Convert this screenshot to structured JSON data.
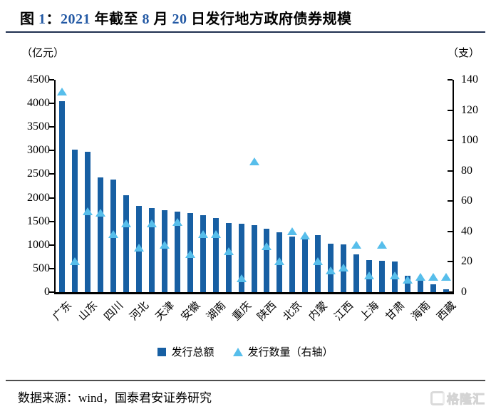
{
  "title": {
    "full": "图 1：2021 年截至 8 月 20 日发行地方政府债券规模",
    "parts": [
      {
        "text": "图 ",
        "color": "#000000"
      },
      {
        "text": "1",
        "color": "#2359A4"
      },
      {
        "text": "：",
        "color": "#000000"
      },
      {
        "text": "2021",
        "color": "#2359A4"
      },
      {
        "text": " 年截至 ",
        "color": "#000000"
      },
      {
        "text": "8",
        "color": "#2359A4"
      },
      {
        "text": " 月 ",
        "color": "#000000"
      },
      {
        "text": "20",
        "color": "#2359A4"
      },
      {
        "text": " 日发行地方政府债券规模",
        "color": "#000000"
      }
    ]
  },
  "chart": {
    "left_axis_unit": "（亿元）",
    "right_axis_unit": "（支）",
    "left_ticks": [
      0,
      500,
      1000,
      1500,
      2000,
      2500,
      3000,
      3500,
      4000,
      4500
    ],
    "right_ticks": [
      0,
      20,
      40,
      60,
      80,
      100,
      120,
      140
    ]
  },
  "chart_data": {
    "type": "bar",
    "title": "2021 年截至 8 月 20 日发行地方政府债券规模",
    "categories": [
      "广东",
      "",
      "山东",
      "",
      "四川",
      "",
      "河北",
      "",
      "天津",
      "",
      "安徽",
      "",
      "湖南",
      "",
      "重庆",
      "",
      "陕西",
      "",
      "北京",
      "",
      "内蒙",
      "",
      "江西",
      "",
      "上海",
      "",
      "甘肃",
      "",
      "海南",
      "",
      "西藏"
    ],
    "series": [
      {
        "name": "发行总额",
        "type": "bar",
        "axis": "left",
        "unit": "亿元",
        "color": "#175FA3",
        "values": [
          4040,
          3020,
          2980,
          2430,
          2380,
          2060,
          1830,
          1780,
          1740,
          1700,
          1670,
          1630,
          1570,
          1465,
          1445,
          1425,
          1350,
          1270,
          1180,
          1110,
          1210,
          1030,
          1010,
          800,
          680,
          670,
          645,
          340,
          240,
          165,
          60
        ]
      },
      {
        "name": "发行数量（右轴）",
        "type": "scatter-triangle",
        "axis": "right",
        "unit": "支",
        "color": "#57BEEB",
        "values": [
          132,
          20,
          53,
          52,
          38,
          45,
          29,
          45,
          31,
          46,
          25,
          38,
          38,
          27,
          9,
          86,
          30,
          20,
          40,
          37,
          20,
          14,
          16,
          31,
          11,
          31,
          11,
          8,
          10,
          10,
          10
        ]
      }
    ],
    "left_ylim": [
      0,
      4500
    ],
    "right_ylim": [
      0,
      140
    ],
    "grid": false,
    "legend_position": "bottom-center"
  },
  "footer": {
    "source": "数据来源：wind，国泰君安证券研究",
    "watermark": "格隆汇"
  }
}
